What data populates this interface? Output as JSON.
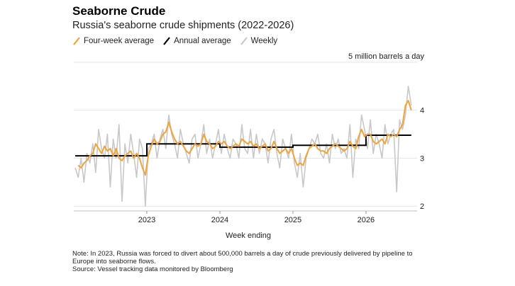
{
  "title": "Seaborne Crude",
  "subtitle": "Russia's seaborne crude shipments (2022-2026)",
  "legend": [
    {
      "label": "Four-week average",
      "color": "#f2a33a"
    },
    {
      "label": "Annual average",
      "color": "#000000"
    },
    {
      "label": "Weekly",
      "color": "#c8c8c8"
    }
  ],
  "note": "Note: In 2023, Russia was forced to divert about 500,000 barrels a day of crude previously delivered by pipeline to Europe into seaborne flows.",
  "source": "Source: Vessel tracking data monitored by Bloomberg",
  "chart_data": {
    "type": "line",
    "title": "Seaborne Crude",
    "subtitle": "Russia's seaborne crude shipments (2022-2026)",
    "xlabel": "Week ending",
    "ylabel": "",
    "unit_label": "5 million barrels a day",
    "y_ticks": [
      "2",
      "3",
      "4"
    ],
    "x_ticks": [
      "2023",
      "2024",
      "2025",
      "2026"
    ],
    "ylim": [
      1.9,
      5
    ],
    "xlim": [
      2022.0,
      2026.7
    ],
    "grid": true,
    "legend_position": "top-left",
    "series": [
      {
        "name": "Weekly",
        "color": "#c8c8c8",
        "x": [
          2022.02,
          2022.06,
          2022.1,
          2022.14,
          2022.18,
          2022.22,
          2022.26,
          2022.3,
          2022.34,
          2022.38,
          2022.42,
          2022.46,
          2022.5,
          2022.54,
          2022.58,
          2022.62,
          2022.66,
          2022.7,
          2022.74,
          2022.78,
          2022.82,
          2022.86,
          2022.9,
          2022.94,
          2022.98,
          2023.02,
          2023.06,
          2023.1,
          2023.14,
          2023.18,
          2023.22,
          2023.26,
          2023.3,
          2023.34,
          2023.38,
          2023.42,
          2023.46,
          2023.5,
          2023.54,
          2023.58,
          2023.62,
          2023.66,
          2023.7,
          2023.74,
          2023.78,
          2023.82,
          2023.86,
          2023.9,
          2023.94,
          2023.98,
          2024.02,
          2024.06,
          2024.1,
          2024.14,
          2024.18,
          2024.22,
          2024.26,
          2024.3,
          2024.34,
          2024.38,
          2024.42,
          2024.46,
          2024.5,
          2024.54,
          2024.58,
          2024.62,
          2024.66,
          2024.7,
          2024.74,
          2024.78,
          2024.82,
          2024.86,
          2024.9,
          2024.94,
          2024.98,
          2025.02,
          2025.06,
          2025.1,
          2025.14,
          2025.18,
          2025.22,
          2025.26,
          2025.3,
          2025.34,
          2025.38,
          2025.42,
          2025.46,
          2025.5,
          2025.54,
          2025.58,
          2025.62,
          2025.66,
          2025.7,
          2025.74,
          2025.78,
          2025.82,
          2025.86,
          2025.9,
          2025.94,
          2025.98,
          2026.02,
          2026.06,
          2026.1,
          2026.14,
          2026.18,
          2026.22,
          2026.26,
          2026.3,
          2026.34,
          2026.38,
          2026.42,
          2026.46,
          2026.5,
          2026.54,
          2026.58,
          2026.62
        ],
        "values": [
          2.8,
          2.6,
          3.0,
          2.5,
          3.1,
          2.9,
          3.3,
          2.7,
          3.6,
          3.2,
          3.0,
          3.5,
          2.4,
          3.4,
          3.0,
          3.7,
          2.1,
          3.3,
          2.9,
          3.5,
          3.1,
          2.6,
          3.4,
          3.2,
          2.0,
          3.2,
          3.3,
          3.5,
          3.0,
          3.4,
          3.6,
          3.2,
          3.9,
          3.5,
          3.3,
          3.0,
          3.6,
          3.3,
          3.1,
          2.9,
          3.4,
          3.5,
          3.0,
          3.3,
          3.7,
          3.1,
          3.4,
          3.0,
          3.3,
          3.6,
          3.1,
          3.5,
          3.2,
          3.0,
          3.4,
          3.3,
          3.0,
          3.7,
          3.2,
          3.1,
          3.6,
          3.0,
          3.5,
          3.1,
          3.4,
          3.3,
          2.9,
          3.4,
          3.6,
          3.1,
          2.8,
          3.4,
          3.2,
          3.0,
          3.5,
          2.9,
          2.6,
          3.1,
          2.4,
          3.0,
          3.2,
          3.4,
          3.3,
          3.5,
          3.1,
          3.0,
          3.3,
          2.9,
          3.5,
          3.2,
          3.4,
          3.1,
          3.2,
          3.0,
          3.7,
          2.6,
          3.4,
          3.2,
          3.9,
          3.6,
          3.2,
          3.8,
          3.1,
          3.5,
          3.3,
          3.0,
          3.7,
          3.3,
          3.5,
          3.6,
          2.3,
          3.8,
          3.6,
          3.9,
          4.5,
          4.1
        ],
        "_comment": "weekly values estimated visually"
      },
      {
        "name": "Four-week average",
        "color": "#f2a33a",
        "x": [
          2022.06,
          2022.1,
          2022.14,
          2022.18,
          2022.22,
          2022.26,
          2022.3,
          2022.34,
          2022.38,
          2022.42,
          2022.46,
          2022.5,
          2022.54,
          2022.58,
          2022.62,
          2022.66,
          2022.7,
          2022.74,
          2022.78,
          2022.82,
          2022.86,
          2022.9,
          2022.94,
          2022.98,
          2023.02,
          2023.06,
          2023.1,
          2023.14,
          2023.18,
          2023.22,
          2023.26,
          2023.3,
          2023.34,
          2023.38,
          2023.42,
          2023.46,
          2023.5,
          2023.54,
          2023.58,
          2023.62,
          2023.66,
          2023.7,
          2023.74,
          2023.78,
          2023.82,
          2023.86,
          2023.9,
          2023.94,
          2023.98,
          2024.02,
          2024.06,
          2024.1,
          2024.14,
          2024.18,
          2024.22,
          2024.26,
          2024.3,
          2024.34,
          2024.38,
          2024.42,
          2024.46,
          2024.5,
          2024.54,
          2024.58,
          2024.62,
          2024.66,
          2024.7,
          2024.74,
          2024.78,
          2024.82,
          2024.86,
          2024.9,
          2024.94,
          2024.98,
          2025.02,
          2025.06,
          2025.1,
          2025.14,
          2025.18,
          2025.22,
          2025.26,
          2025.3,
          2025.34,
          2025.38,
          2025.42,
          2025.46,
          2025.5,
          2025.54,
          2025.58,
          2025.62,
          2025.66,
          2025.7,
          2025.74,
          2025.78,
          2025.82,
          2025.86,
          2025.9,
          2025.94,
          2025.98,
          2026.02,
          2026.06,
          2026.1,
          2026.14,
          2026.18,
          2026.22,
          2026.26,
          2026.3,
          2026.34,
          2026.38,
          2026.42,
          2026.46,
          2026.5,
          2026.54,
          2026.58,
          2026.62
        ],
        "values": [
          2.85,
          2.8,
          2.9,
          2.95,
          3.05,
          3.1,
          3.3,
          3.2,
          3.1,
          3.25,
          3.15,
          3.2,
          3.05,
          3.2,
          3.0,
          2.95,
          3.05,
          3.1,
          3.15,
          3.0,
          3.1,
          3.0,
          2.8,
          2.65,
          3.05,
          3.25,
          3.4,
          3.3,
          3.35,
          3.5,
          3.55,
          3.75,
          3.55,
          3.4,
          3.3,
          3.35,
          3.25,
          3.15,
          3.1,
          3.2,
          3.3,
          3.25,
          3.3,
          3.5,
          3.35,
          3.3,
          3.2,
          3.25,
          3.35,
          3.3,
          3.35,
          3.25,
          3.2,
          3.25,
          3.3,
          3.25,
          3.4,
          3.35,
          3.3,
          3.35,
          3.25,
          3.3,
          3.2,
          3.25,
          3.3,
          3.15,
          3.2,
          3.35,
          3.2,
          3.1,
          3.15,
          3.2,
          3.1,
          3.2,
          3.0,
          2.85,
          2.9,
          2.85,
          3.05,
          3.2,
          3.25,
          3.3,
          3.2,
          3.15,
          3.15,
          3.1,
          3.2,
          3.25,
          3.3,
          3.25,
          3.2,
          3.15,
          3.2,
          3.35,
          3.25,
          3.2,
          3.45,
          3.6,
          3.45,
          3.5,
          3.5,
          3.35,
          3.3,
          3.35,
          3.4,
          3.3,
          3.5,
          3.45,
          3.5,
          3.45,
          3.6,
          3.7,
          4.1,
          4.2,
          4.0
        ]
      },
      {
        "name": "Annual average",
        "color": "#000000",
        "steps": [
          {
            "x0": 2022.02,
            "x1": 2023.0,
            "value": 3.05
          },
          {
            "x0": 2023.0,
            "x1": 2024.0,
            "value": 3.3
          },
          {
            "x0": 2024.0,
            "x1": 2025.0,
            "value": 3.23
          },
          {
            "x0": 2025.0,
            "x1": 2026.0,
            "value": 3.27
          },
          {
            "x0": 2026.0,
            "x1": 2026.62,
            "value": 3.48
          }
        ]
      }
    ]
  }
}
